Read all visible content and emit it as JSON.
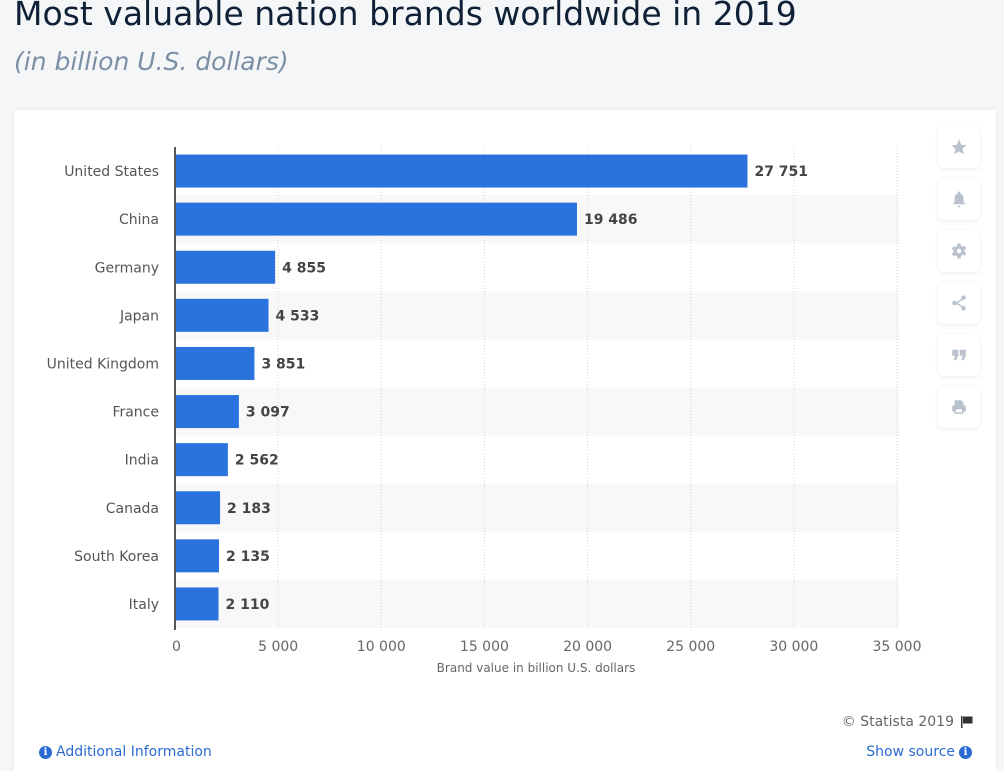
{
  "header": {
    "title": "Most valuable nation brands worldwide in 2019",
    "subtitle": "(in billion U.S. dollars)"
  },
  "toolbar": {
    "buttons": [
      {
        "name": "favorite",
        "icon": "star-icon"
      },
      {
        "name": "notification",
        "icon": "bell-icon"
      },
      {
        "name": "settings",
        "icon": "gear-icon"
      },
      {
        "name": "share",
        "icon": "share-icon"
      },
      {
        "name": "cite",
        "icon": "quote-icon"
      },
      {
        "name": "print",
        "icon": "print-icon"
      }
    ]
  },
  "footer": {
    "copyright": "© Statista 2019",
    "additional_info": "Additional Information",
    "show_source": "Show source"
  },
  "colors": {
    "bar": "#2a72de",
    "stripe": "#f8f8f8"
  },
  "chart_data": {
    "type": "bar",
    "orientation": "horizontal",
    "title": "Most valuable nation brands worldwide in 2019",
    "subtitle": "(in billion U.S. dollars)",
    "xlabel": "Brand value in billion U.S. dollars",
    "ylabel": "",
    "categories": [
      "United States",
      "China",
      "Germany",
      "Japan",
      "United Kingdom",
      "France",
      "India",
      "Canada",
      "South Korea",
      "Italy"
    ],
    "values": [
      27751,
      19486,
      4855,
      4533,
      3851,
      3097,
      2562,
      2183,
      2135,
      2110
    ],
    "value_labels": [
      "27 751",
      "19 486",
      "4 855",
      "4 533",
      "3 851",
      "3 097",
      "2 562",
      "2 183",
      "2 135",
      "2 110"
    ],
    "xlim": [
      0,
      35000
    ],
    "xticks": [
      0,
      5000,
      10000,
      15000,
      20000,
      25000,
      30000,
      35000
    ],
    "xtick_labels": [
      "0",
      "5 000",
      "10 000",
      "15 000",
      "20 000",
      "25 000",
      "30 000",
      "35 000"
    ],
    "grid": true,
    "legend": "none"
  }
}
